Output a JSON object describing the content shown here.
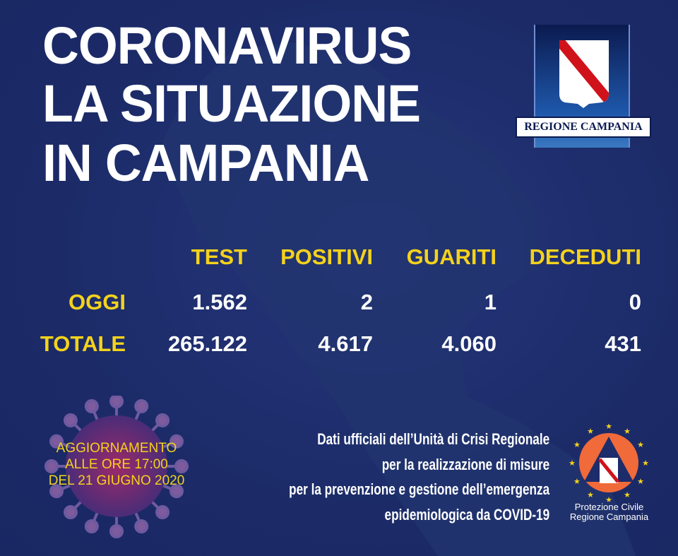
{
  "title": [
    "CORONAVIRUS",
    "LA SITUAZIONE",
    "IN CAMPANIA"
  ],
  "logo": {
    "label": "REGIONE CAMPANIA",
    "colors": {
      "stripe": "#d0121b",
      "shield": "#ffffff"
    }
  },
  "table": {
    "headers": [
      "TEST",
      "POSITIVI",
      "GUARITI",
      "DECEDUTI"
    ],
    "rows": [
      {
        "label": "OGGI",
        "values": [
          "1.562",
          "2",
          "1",
          "0"
        ]
      },
      {
        "label": "TOTALE",
        "values": [
          "265.122",
          "4.617",
          "4.060",
          "431"
        ]
      }
    ]
  },
  "update": [
    "AGGIORNAMENTO",
    "ALLE ORE 17:00",
    "DEL 21 GIUGNO 2020"
  ],
  "info": [
    "Dati ufficiali dell’Unità di Crisi Regionale",
    "per la realizzazione di misure",
    "per la prevenzione e gestione dell’emergenza",
    "epidemiologica da COVID-19"
  ],
  "protezione": [
    "Protezione Civile",
    "Regione Campania"
  ],
  "colors": {
    "background": "#1d2c6a",
    "accent": "#f4d21c",
    "text": "#ffffff",
    "orange": "#f06a3a"
  }
}
